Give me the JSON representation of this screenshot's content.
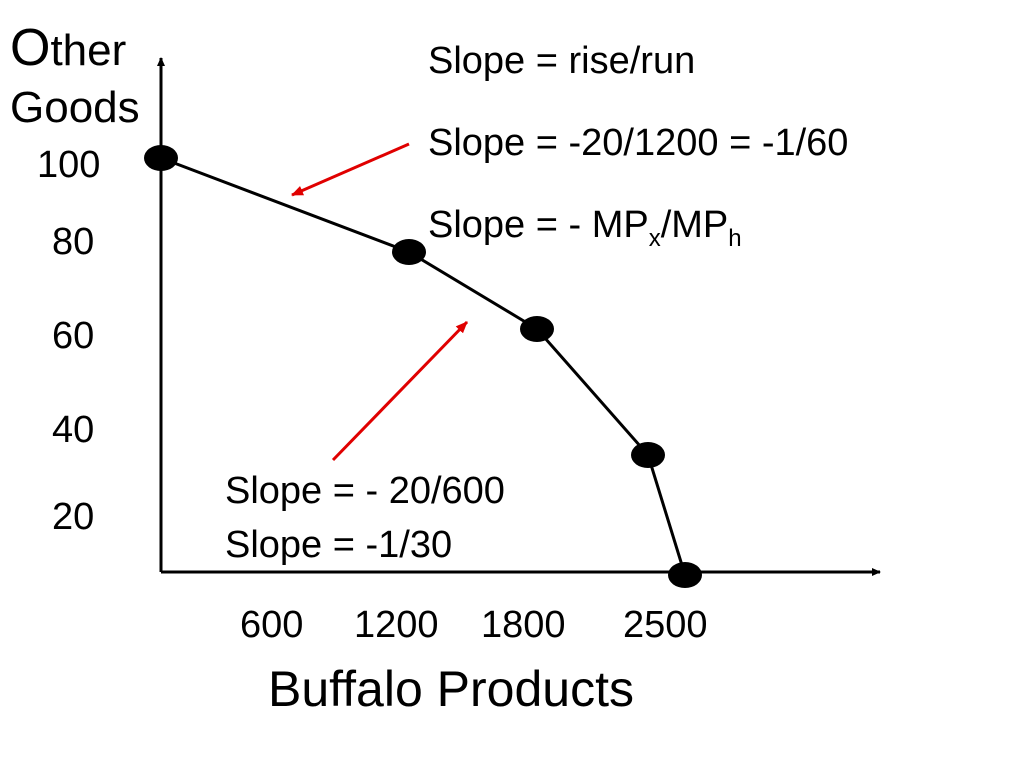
{
  "chart_data": {
    "type": "line",
    "title": "",
    "ylabel": {
      "first_letter": "O",
      "rest": "ther",
      "line2": "Goods"
    },
    "xlabel": "Buffalo Products",
    "y_ticks": [
      "100",
      "80",
      "60",
      "40",
      "20"
    ],
    "x_ticks": [
      "600",
      "1200",
      "1800",
      "2500"
    ],
    "points": [
      {
        "x": 0,
        "y": 100
      },
      {
        "x": 1200,
        "y": 80
      },
      {
        "x": 1800,
        "y": 60
      },
      {
        "x": 2500,
        "y": 20
      },
      {
        "x": 2700,
        "y": 0
      }
    ],
    "annotations": {
      "top": {
        "line1": "Slope = rise/run",
        "line2": "Slope = -20/1200 = -1/60",
        "line3_prefix": "Slope = - MP",
        "line3_sub1": "x",
        "line3_mid": "/MP",
        "line3_sub2": "h"
      },
      "bottom": {
        "line1": "Slope = - 20/600",
        "line2": "Slope = -1/30"
      }
    },
    "colors": {
      "curve": "#000000",
      "arrow": "#e00000",
      "axis": "#000000"
    }
  }
}
